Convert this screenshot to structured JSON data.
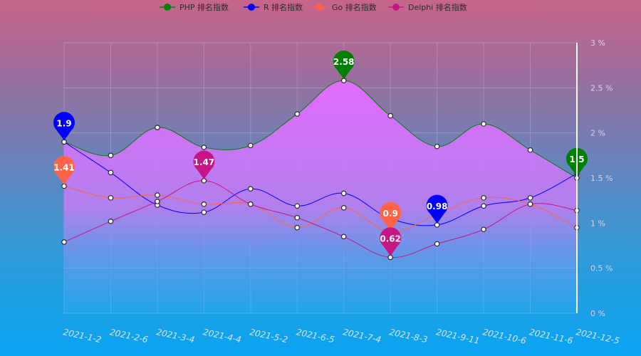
{
  "chart_data": {
    "type": "line",
    "categories": [
      "2021-1-2",
      "2021-2-6",
      "2021-3-4",
      "2021-4-4",
      "2021-5-2",
      "2021-6-5",
      "2021-7-4",
      "2021-8-3",
      "2021-9-11",
      "2021-10-6",
      "2021-11-6",
      "2021-12-5"
    ],
    "ylim": [
      0,
      3
    ],
    "yticks": [
      0,
      0.5,
      1,
      1.5,
      2,
      2.5,
      3
    ],
    "ytick_labels": [
      "0 %",
      "0.5 %",
      "1 %",
      "1.5 %",
      "2 %",
      "2.5 %",
      "3 %"
    ],
    "y_axis_position": "right",
    "grid": true,
    "legend_position": "top-center",
    "series": [
      {
        "name": "PHP 排名指数",
        "color": "#008000",
        "area": true,
        "values": [
          1.9,
          1.75,
          2.06,
          1.84,
          1.86,
          2.21,
          2.58,
          2.19,
          1.85,
          2.1,
          1.81,
          1.5
        ],
        "marks": [
          {
            "index": 6,
            "label": "2.58"
          },
          {
            "index": 11,
            "label": "1.5"
          }
        ]
      },
      {
        "name": "R 排名指数",
        "color": "#0000ff",
        "area": false,
        "values": [
          1.9,
          1.56,
          1.2,
          1.12,
          1.38,
          1.19,
          1.33,
          1.05,
          0.98,
          1.19,
          1.28,
          1.55
        ],
        "marks": [
          {
            "index": 0,
            "label": "1.9"
          },
          {
            "index": 8,
            "label": "0.98"
          }
        ]
      },
      {
        "name": "Go 排名指数",
        "color": "#ff6347",
        "area": false,
        "values": [
          1.41,
          1.28,
          1.31,
          1.21,
          1.21,
          0.95,
          1.17,
          0.9,
          1.1,
          1.28,
          1.21,
          0.95
        ],
        "marks": [
          {
            "index": 0,
            "label": "1.41"
          },
          {
            "index": 7,
            "label": "0.9"
          }
        ]
      },
      {
        "name": "Delphi 排名指数",
        "color": "#c71585",
        "area": false,
        "values": [
          0.79,
          1.02,
          1.24,
          1.47,
          1.21,
          1.06,
          0.85,
          0.62,
          0.77,
          0.93,
          1.21,
          1.14
        ],
        "marks": [
          {
            "index": 3,
            "label": "1.47"
          },
          {
            "index": 7,
            "label": "0.62"
          }
        ]
      }
    ]
  }
}
